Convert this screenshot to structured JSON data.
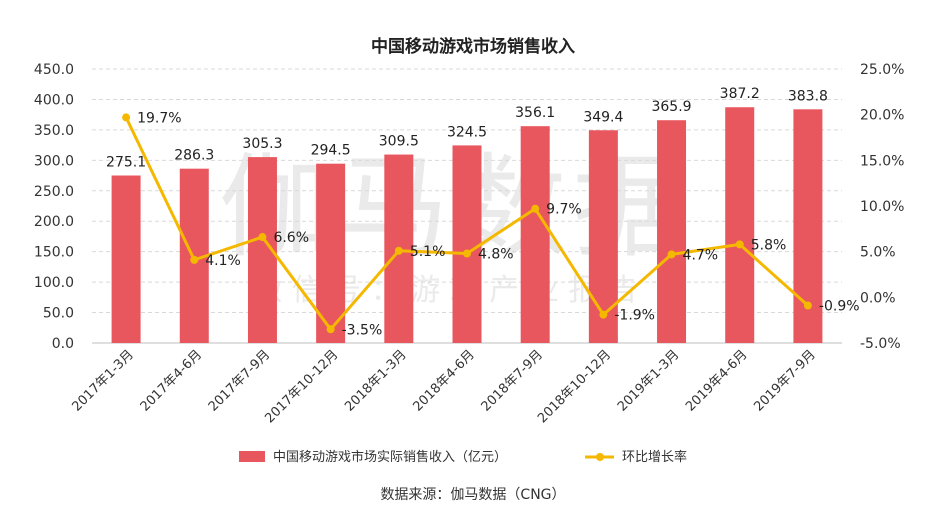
{
  "chart_data": {
    "type": "bar+line",
    "title": "中国移动游戏市场销售收入",
    "categories": [
      "2017年1-3月",
      "2017年4-6月",
      "2017年7-9月",
      "2017年10-12月",
      "2018年1-3月",
      "2018年4-6月",
      "2018年7-9月",
      "2018年10-12月",
      "2019年1-3月",
      "2019年4-6月",
      "2019年7-9月"
    ],
    "series": [
      {
        "name": "中国移动游戏市场实际销售收入（亿元）",
        "type": "bar",
        "axis": "left",
        "color": "#e8575e",
        "values": [
          275.1,
          286.3,
          305.3,
          294.5,
          309.5,
          324.5,
          356.1,
          349.4,
          365.9,
          387.2,
          383.8
        ],
        "labels": [
          "275.1",
          "286.3",
          "305.3",
          "294.5",
          "309.5",
          "324.5",
          "356.1",
          "349.4",
          "365.9",
          "387.2",
          "383.8"
        ]
      },
      {
        "name": "环比增长率",
        "type": "line",
        "axis": "right",
        "color": "#f5b800",
        "values": [
          19.7,
          4.1,
          6.6,
          -3.5,
          5.1,
          4.8,
          9.7,
          -1.9,
          4.7,
          5.8,
          -0.9
        ],
        "labels": [
          "19.7%",
          "4.1%",
          "6.6%",
          "-3.5%",
          "5.1%",
          "4.8%",
          "9.7%",
          "-1.9%",
          "4.7%",
          "5.8%",
          "-0.9%"
        ]
      }
    ],
    "left_axis": {
      "min": 0,
      "max": 450,
      "step": 50,
      "ticks": [
        "0.0",
        "50.0",
        "100.0",
        "150.0",
        "200.0",
        "250.0",
        "300.0",
        "350.0",
        "400.0",
        "450.0"
      ]
    },
    "right_axis": {
      "min": -5,
      "max": 25,
      "step": 5,
      "ticks": [
        "-5.0%",
        "0.0%",
        "5.0%",
        "10.0%",
        "15.0%",
        "20.0%",
        "25.0%"
      ]
    },
    "grid": true,
    "legend_position": "bottom",
    "source": "数据来源：伽马数据（CNG）",
    "watermark_main": "伽马数据",
    "watermark_sub": "微 信 号 ： 游 戏 产 业 报 告"
  }
}
